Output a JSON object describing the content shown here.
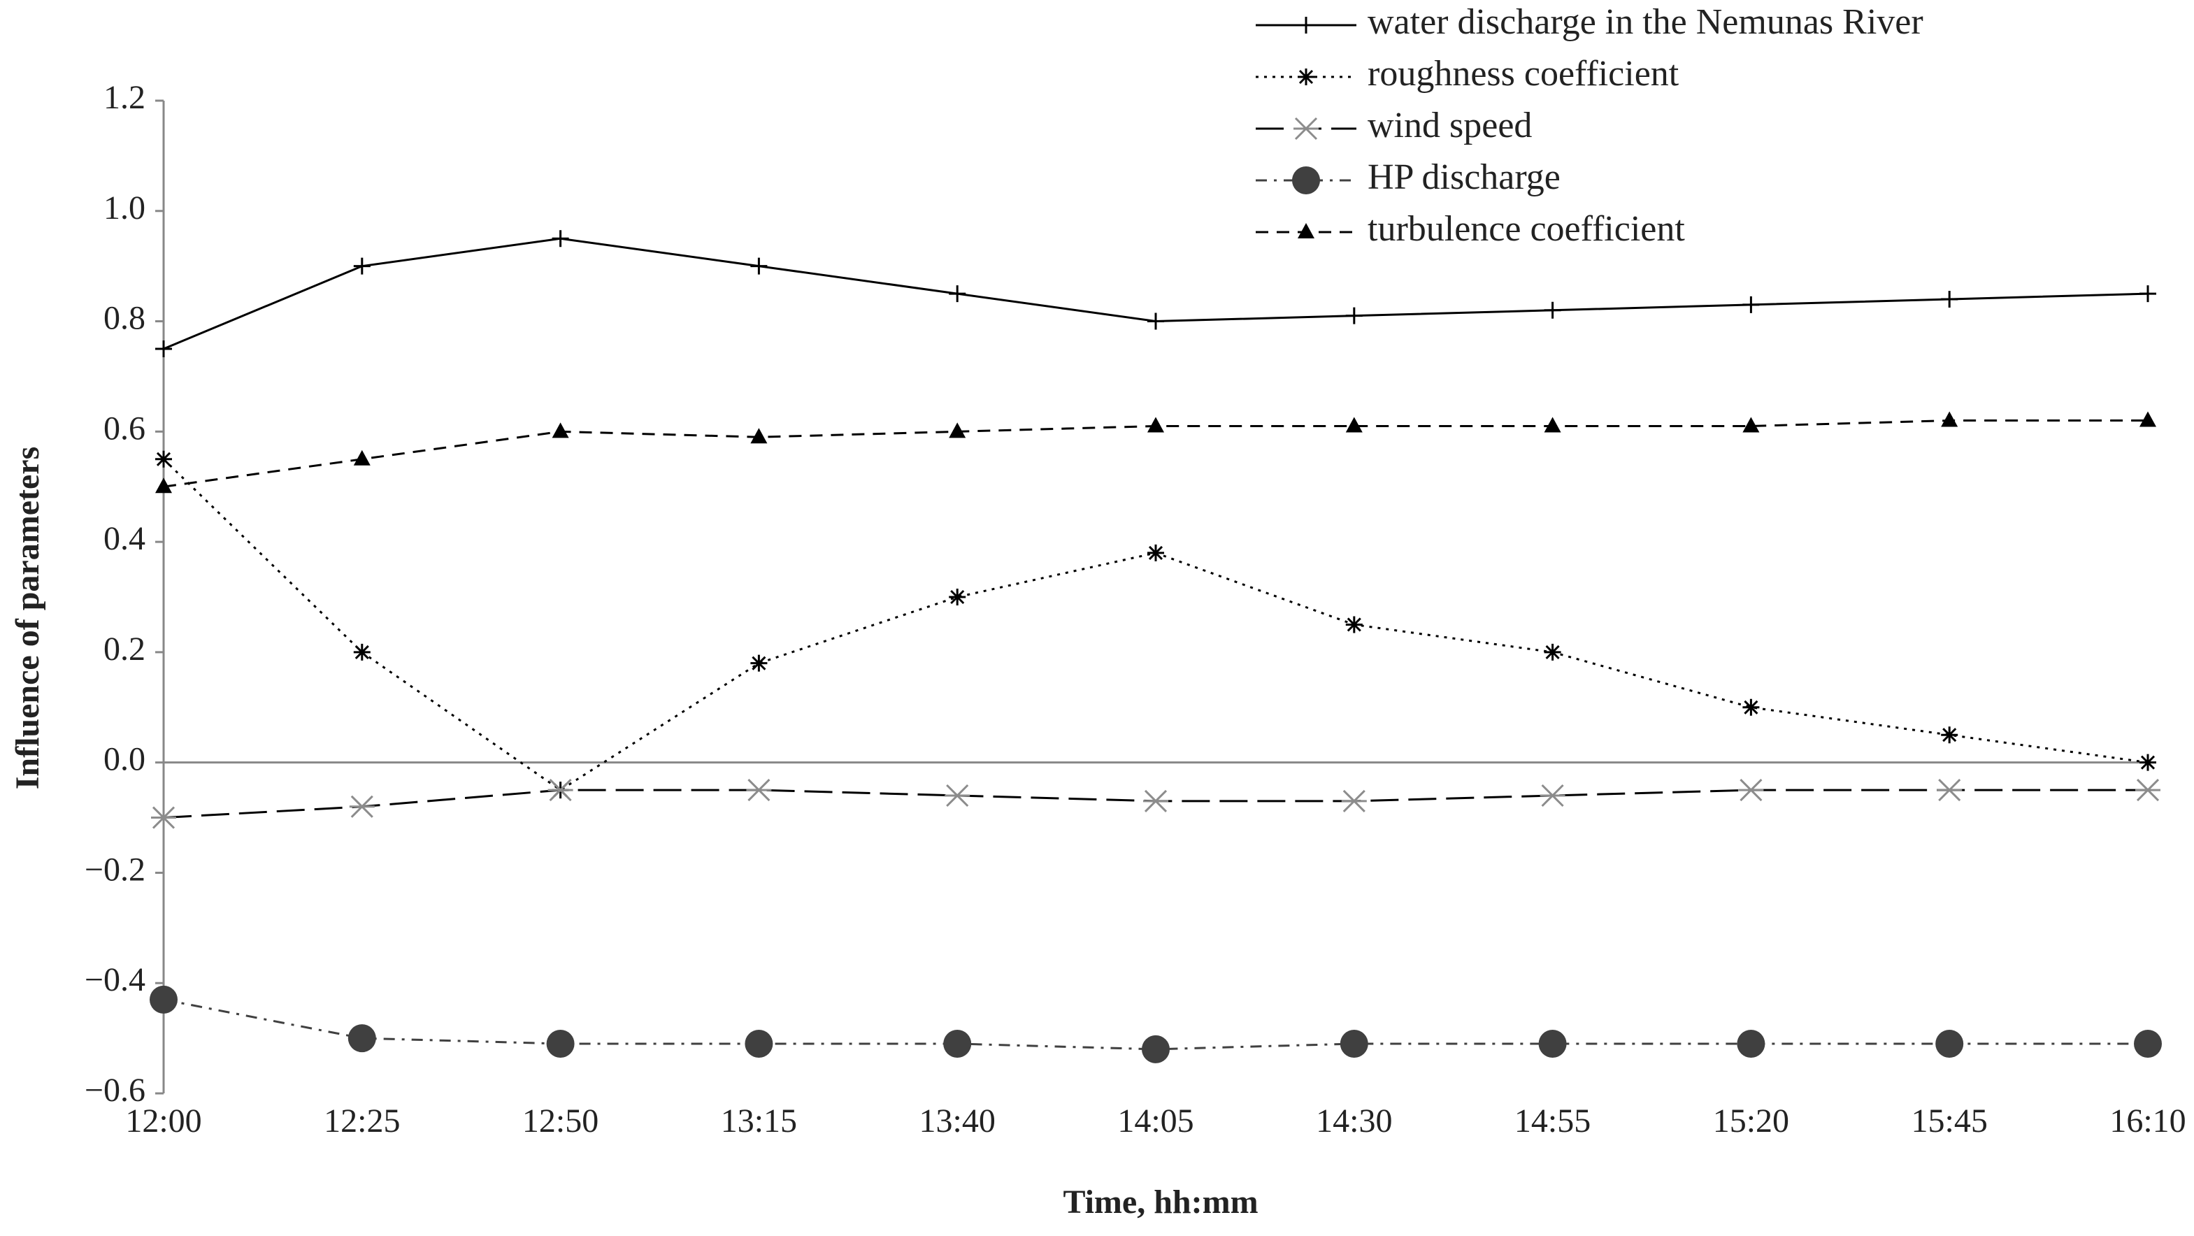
{
  "chart_data": {
    "type": "line",
    "x_label": "Time, hh:mm",
    "y_label": "Influence of parameters",
    "categories": [
      "12:00",
      "12:25",
      "12:50",
      "13:15",
      "13:40",
      "14:05",
      "14:30",
      "14:55",
      "15:20",
      "15:45",
      "16:10"
    ],
    "series": [
      {
        "name": "water discharge in the Nemunas River",
        "color": "#000000",
        "marker": "plus",
        "line_style": "solid",
        "values": [
          0.75,
          0.9,
          0.95,
          0.9,
          0.85,
          0.8,
          0.81,
          0.82,
          0.83,
          0.84,
          0.85
        ]
      },
      {
        "name": "roughness coefficient",
        "color": "#000000",
        "marker": "asterisk",
        "line_style": "dotted",
        "values": [
          0.55,
          0.2,
          -0.05,
          0.18,
          0.3,
          0.38,
          0.25,
          0.2,
          0.1,
          0.05,
          0.0
        ]
      },
      {
        "name": "wind speed",
        "color": "#8c8c8c",
        "marker": "x",
        "line_style": "long-dash",
        "values": [
          -0.1,
          -0.08,
          -0.05,
          -0.05,
          -0.06,
          -0.07,
          -0.07,
          -0.06,
          -0.05,
          -0.05,
          -0.05
        ]
      },
      {
        "name": "HP discharge",
        "color": "#404040",
        "marker": "circle",
        "line_style": "dash-dot",
        "values": [
          -0.43,
          -0.5,
          -0.51,
          -0.51,
          -0.51,
          -0.52,
          -0.51,
          -0.51,
          -0.51,
          -0.51,
          -0.51
        ]
      },
      {
        "name": "turbulence coefficient",
        "color": "#000000",
        "marker": "triangle",
        "line_style": "dashed",
        "values": [
          0.5,
          0.55,
          0.6,
          0.59,
          0.6,
          0.61,
          0.61,
          0.61,
          0.61,
          0.62,
          0.62
        ]
      }
    ],
    "ylim": [
      -0.6,
      1.2
    ],
    "yticks": [
      {
        "value": -0.6,
        "label": "−0.6"
      },
      {
        "value": -0.4,
        "label": "−0.4"
      },
      {
        "value": -0.2,
        "label": "−0.2"
      },
      {
        "value": 0,
        "label": "0.0"
      },
      0.2,
      0.4,
      0.6,
      0.8,
      {
        "value": 1,
        "label": "1.0"
      },
      1.2
    ],
    "grid": false,
    "legend": "top-right"
  }
}
